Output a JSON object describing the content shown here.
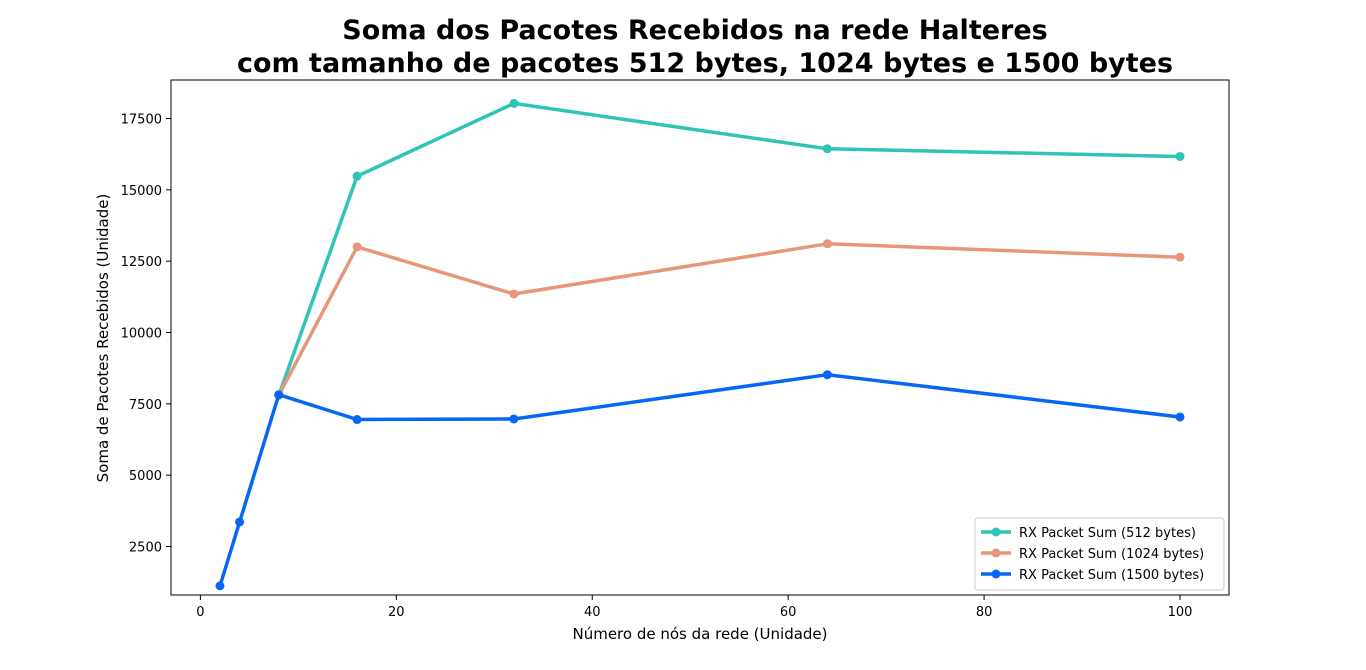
{
  "chart_data": {
    "type": "line",
    "title_line1": "Soma dos Pacotes Recebidos na rede Halteres",
    "title_line2": "com tamanho de pacotes 512 bytes, 1024 bytes e 1500 bytes",
    "xlabel": "Número de nós da rede (Unidade)",
    "ylabel": "Soma de Pacotes Recebidos (Unidade)",
    "xlim": [
      -3,
      105
    ],
    "ylim": [
      800,
      18850
    ],
    "xticks": [
      0,
      20,
      40,
      60,
      80,
      100
    ],
    "yticks": [
      2500,
      5000,
      7500,
      10000,
      12500,
      15000,
      17500
    ],
    "grid": false,
    "legend_position": "lower-right",
    "series": [
      {
        "name": "RX Packet Sum (512 bytes)",
        "color": "#2ec4b6",
        "x": [
          8,
          16,
          32,
          64,
          100
        ],
        "y": [
          7800,
          15480,
          18030,
          16440,
          16170
        ]
      },
      {
        "name": "RX Packet Sum (1024 bytes)",
        "color": "#e8967a",
        "x": [
          8,
          16,
          32,
          64,
          100
        ],
        "y": [
          7800,
          13000,
          11350,
          13110,
          12640
        ]
      },
      {
        "name": "RX Packet Sum (1500 bytes)",
        "color": "#0866f5",
        "x": [
          2,
          4,
          8,
          16,
          32,
          64,
          100
        ],
        "y": [
          1120,
          3360,
          7820,
          6950,
          6970,
          8520,
          7040
        ]
      }
    ]
  }
}
